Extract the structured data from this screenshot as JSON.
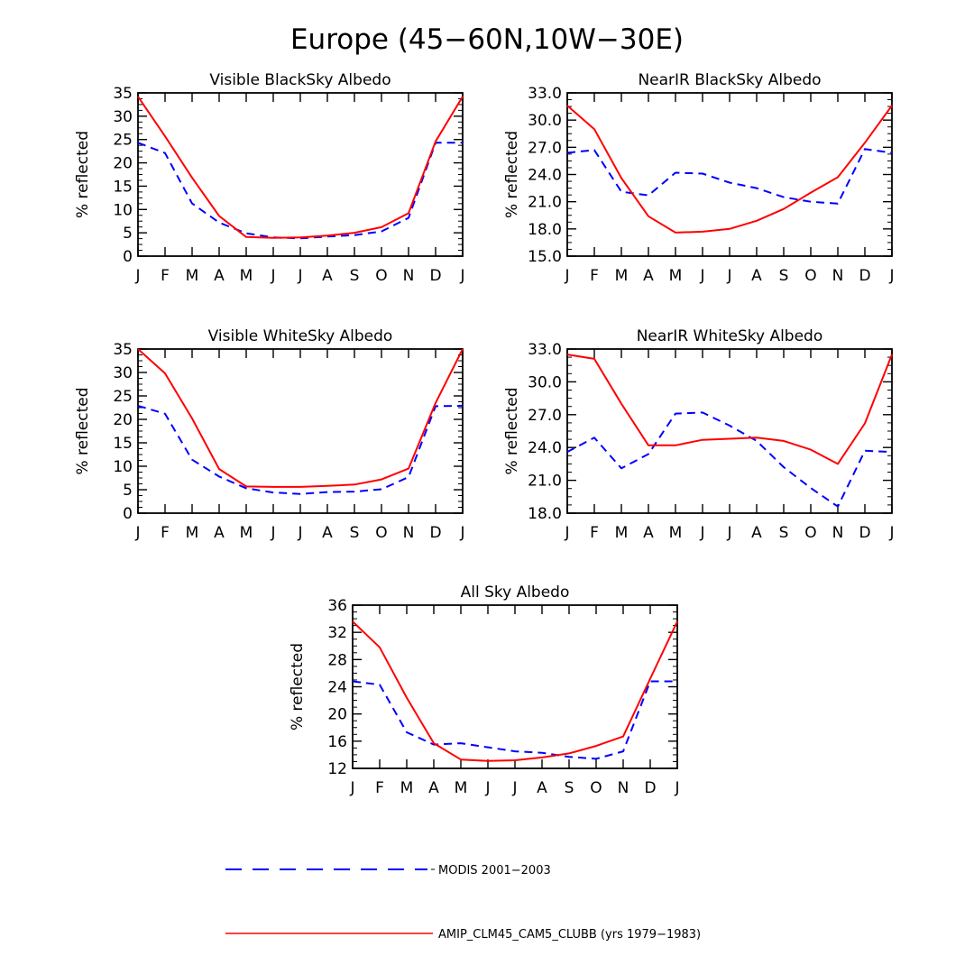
{
  "figure": {
    "title": "Europe (45−60N,10W−30E)"
  },
  "colors": {
    "model": "#ff0000",
    "obs": "#0000ff"
  },
  "legend": {
    "obs_label": "MODIS 2001−2003",
    "model_label": "AMIP_CLM45_CAM5_CLUBB (yrs 1979−1983)"
  },
  "chart_data": [
    {
      "type": "line",
      "title": "Visible BlackSky Albedo",
      "ylabel": "% reflected",
      "x": [
        "J",
        "F",
        "M",
        "A",
        "M",
        "J",
        "J",
        "A",
        "S",
        "O",
        "N",
        "D",
        "J"
      ],
      "ylim": [
        0,
        35
      ],
      "yticks": [
        "0",
        "5",
        "10",
        "15",
        "20",
        "25",
        "30",
        "35"
      ],
      "series": [
        {
          "key": "obs",
          "style": "dashed",
          "values": [
            24.3,
            22.1,
            11.3,
            7.2,
            4.9,
            4.0,
            3.8,
            4.2,
            4.5,
            5.3,
            8.2,
            24.3,
            24.3
          ]
        },
        {
          "key": "model",
          "style": "solid",
          "values": [
            34.2,
            25.7,
            16.8,
            8.6,
            4.1,
            3.9,
            4.0,
            4.4,
            5.0,
            6.2,
            9.2,
            24.6,
            34.2
          ]
        }
      ]
    },
    {
      "type": "line",
      "title": "NearIR BlackSky Albedo",
      "ylabel": "% reflected",
      "x": [
        "J",
        "F",
        "M",
        "A",
        "M",
        "J",
        "J",
        "A",
        "S",
        "O",
        "N",
        "D",
        "J"
      ],
      "ylim": [
        15,
        33
      ],
      "yticks": [
        "15.0",
        "18.0",
        "21.0",
        "24.0",
        "27.0",
        "30.0",
        "33.0"
      ],
      "series": [
        {
          "key": "obs",
          "style": "dashed",
          "values": [
            26.4,
            26.7,
            22.1,
            21.7,
            24.2,
            24.1,
            23.1,
            22.5,
            21.5,
            21.0,
            20.8,
            26.8,
            26.4
          ]
        },
        {
          "key": "model",
          "style": "solid",
          "values": [
            31.6,
            29.0,
            23.6,
            19.4,
            17.6,
            17.7,
            18.0,
            18.9,
            20.2,
            22.0,
            23.7,
            27.5,
            31.6
          ]
        }
      ]
    },
    {
      "type": "line",
      "title": "Visible WhiteSky Albedo",
      "ylabel": "% reflected",
      "x": [
        "J",
        "F",
        "M",
        "A",
        "M",
        "J",
        "J",
        "A",
        "S",
        "O",
        "N",
        "D",
        "J"
      ],
      "ylim": [
        0,
        35
      ],
      "yticks": [
        "0",
        "5",
        "10",
        "15",
        "20",
        "25",
        "30",
        "35"
      ],
      "series": [
        {
          "key": "obs",
          "style": "dashed",
          "values": [
            22.9,
            21.2,
            11.4,
            7.8,
            5.3,
            4.4,
            4.1,
            4.5,
            4.6,
            5.1,
            7.7,
            22.8,
            22.9
          ]
        },
        {
          "key": "model",
          "style": "solid",
          "values": [
            35.0,
            29.8,
            20.2,
            9.4,
            5.7,
            5.6,
            5.6,
            5.8,
            6.1,
            7.2,
            9.5,
            23.5,
            35.0
          ]
        }
      ]
    },
    {
      "type": "line",
      "title": "NearIR WhiteSky Albedo",
      "ylabel": "% reflected",
      "x": [
        "J",
        "F",
        "M",
        "A",
        "M",
        "J",
        "J",
        "A",
        "S",
        "O",
        "N",
        "D",
        "J"
      ],
      "ylim": [
        18,
        33
      ],
      "yticks": [
        "18.0",
        "21.0",
        "24.0",
        "27.0",
        "30.0",
        "33.0"
      ],
      "series": [
        {
          "key": "obs",
          "style": "dashed",
          "values": [
            23.6,
            24.9,
            22.1,
            23.4,
            27.1,
            27.2,
            26.0,
            24.6,
            22.2,
            20.3,
            18.6,
            23.7,
            23.6
          ]
        },
        {
          "key": "model",
          "style": "solid",
          "values": [
            32.5,
            32.1,
            28.0,
            24.2,
            24.2,
            24.7,
            24.8,
            24.9,
            24.6,
            23.8,
            22.5,
            26.2,
            32.5
          ]
        }
      ]
    },
    {
      "type": "line",
      "title": "All Sky Albedo",
      "ylabel": "% reflected",
      "x": [
        "J",
        "F",
        "M",
        "A",
        "M",
        "J",
        "J",
        "A",
        "S",
        "O",
        "N",
        "D",
        "J"
      ],
      "ylim": [
        12,
        36
      ],
      "yticks": [
        "12",
        "16",
        "20",
        "24",
        "28",
        "32",
        "36"
      ],
      "series": [
        {
          "key": "obs",
          "style": "dashed",
          "values": [
            24.8,
            24.3,
            17.3,
            15.5,
            15.7,
            15.1,
            14.5,
            14.3,
            13.7,
            13.4,
            14.5,
            24.8,
            24.8
          ]
        },
        {
          "key": "model",
          "style": "solid",
          "values": [
            33.6,
            29.8,
            22.4,
            15.7,
            13.3,
            13.1,
            13.2,
            13.6,
            14.2,
            15.3,
            16.7,
            25.2,
            33.6
          ]
        }
      ]
    }
  ]
}
